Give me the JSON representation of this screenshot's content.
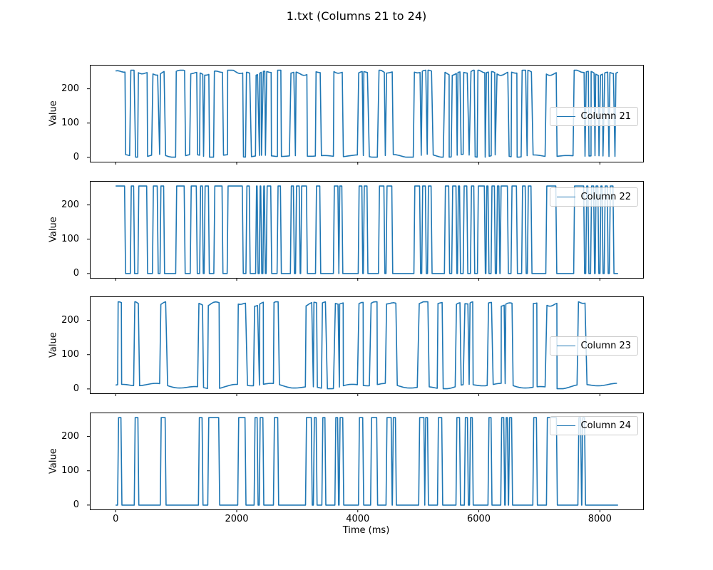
{
  "figure": {
    "title": "1.txt (Columns 21 to 24)",
    "background_color": "#ffffff",
    "line_color": "#1f77b4"
  },
  "axes": {
    "x_label": "Time (ms)",
    "y_label": "Value",
    "x_ticks": [
      0,
      2000,
      4000,
      6000,
      8000
    ],
    "y_ticks": [
      0,
      100,
      200
    ],
    "x_range_ms": [
      -415,
      8715
    ],
    "y_range": [
      -12.75,
      267.75
    ],
    "x_data_start_ms": 0,
    "x_data_end_ms": 8300
  },
  "chart_data": [
    {
      "type": "line",
      "name": "Column 21",
      "color": "#1f77b4",
      "signal": "analog",
      "low_level": 4,
      "high_level": 248,
      "legend_loc": "center right",
      "high_intervals_ms": [
        [
          0,
          155
        ],
        [
          250,
          305
        ],
        [
          375,
          520
        ],
        [
          615,
          695
        ],
        [
          740,
          800
        ],
        [
          1000,
          1140
        ],
        [
          1240,
          1340
        ],
        [
          1395,
          1440
        ],
        [
          1470,
          1540
        ],
        [
          1630,
          1765
        ],
        [
          1850,
          2100
        ],
        [
          2160,
          2215
        ],
        [
          2320,
          2345
        ],
        [
          2380,
          2405
        ],
        [
          2440,
          2465
        ],
        [
          2495,
          2570
        ],
        [
          2675,
          2730
        ],
        [
          2895,
          2945
        ],
        [
          2980,
          3040
        ],
        [
          3065,
          3160
        ],
        [
          3310,
          3380
        ],
        [
          3605,
          3680
        ],
        [
          3695,
          3745
        ],
        [
          4015,
          4075
        ],
        [
          4100,
          4160
        ],
        [
          4350,
          4440
        ],
        [
          4475,
          4570
        ],
        [
          4935,
          5030
        ],
        [
          5065,
          5125
        ],
        [
          5160,
          5220
        ],
        [
          5440,
          5510
        ],
        [
          5560,
          5630
        ],
        [
          5655,
          5690
        ],
        [
          5750,
          5810
        ],
        [
          5870,
          5925
        ],
        [
          5985,
          6100
        ],
        [
          6125,
          6160
        ],
        [
          6210,
          6265
        ],
        [
          6300,
          6340
        ],
        [
          6360,
          6480
        ],
        [
          6540,
          6630
        ],
        [
          6715,
          6775
        ],
        [
          6810,
          6870
        ],
        [
          7115,
          7280
        ],
        [
          7575,
          7740
        ],
        [
          7775,
          7810
        ],
        [
          7855,
          7905
        ],
        [
          7930,
          7975
        ],
        [
          8010,
          8045
        ],
        [
          8080,
          8130
        ],
        [
          8165,
          8225
        ],
        [
          8265,
          8300
        ]
      ]
    },
    {
      "type": "line",
      "name": "Column 22",
      "color": "#1f77b4",
      "signal": "digital",
      "low_level": 0,
      "high_level": 255,
      "legend_loc": "upper right",
      "high_intervals_ms": [
        [
          0,
          155
        ],
        [
          250,
          305
        ],
        [
          375,
          520
        ],
        [
          615,
          695
        ],
        [
          740,
          800
        ],
        [
          1000,
          1140
        ],
        [
          1240,
          1340
        ],
        [
          1395,
          1440
        ],
        [
          1470,
          1540
        ],
        [
          1630,
          1765
        ],
        [
          1850,
          2100
        ],
        [
          2160,
          2215
        ],
        [
          2320,
          2345
        ],
        [
          2380,
          2405
        ],
        [
          2440,
          2465
        ],
        [
          2495,
          2570
        ],
        [
          2675,
          2730
        ],
        [
          2895,
          2945
        ],
        [
          2980,
          3040
        ],
        [
          3065,
          3160
        ],
        [
          3310,
          3380
        ],
        [
          3605,
          3680
        ],
        [
          3695,
          3745
        ],
        [
          4015,
          4075
        ],
        [
          4100,
          4160
        ],
        [
          4350,
          4440
        ],
        [
          4475,
          4570
        ],
        [
          4935,
          5030
        ],
        [
          5065,
          5125
        ],
        [
          5160,
          5220
        ],
        [
          5440,
          5510
        ],
        [
          5560,
          5630
        ],
        [
          5655,
          5690
        ],
        [
          5750,
          5810
        ],
        [
          5870,
          5925
        ],
        [
          5985,
          6100
        ],
        [
          6125,
          6160
        ],
        [
          6210,
          6265
        ],
        [
          6300,
          6340
        ],
        [
          6360,
          6480
        ],
        [
          6540,
          6630
        ],
        [
          6715,
          6775
        ],
        [
          6810,
          6870
        ],
        [
          7115,
          7280
        ],
        [
          7575,
          7740
        ],
        [
          7775,
          7810
        ],
        [
          7855,
          7905
        ],
        [
          7930,
          7975
        ],
        [
          8010,
          8045
        ],
        [
          8080,
          8130
        ],
        [
          8165,
          8225
        ]
      ]
    },
    {
      "type": "line",
      "name": "Column 23",
      "color": "#1f77b4",
      "signal": "analog",
      "low_level": 8,
      "high_level": 250,
      "legend_loc": "center right",
      "high_intervals_ms": [
        [
          40,
          95
        ],
        [
          315,
          375
        ],
        [
          745,
          825
        ],
        [
          1375,
          1435
        ],
        [
          1530,
          1710
        ],
        [
          2025,
          2145
        ],
        [
          2295,
          2345
        ],
        [
          2380,
          2440
        ],
        [
          2615,
          2685
        ],
        [
          3145,
          3240
        ],
        [
          3275,
          3320
        ],
        [
          3415,
          3465
        ],
        [
          3630,
          3675
        ],
        [
          3700,
          3760
        ],
        [
          4020,
          4090
        ],
        [
          4220,
          4320
        ],
        [
          4475,
          4560
        ],
        [
          4580,
          4630
        ],
        [
          5015,
          5100
        ],
        [
          5115,
          5160
        ],
        [
          5325,
          5395
        ],
        [
          5630,
          5690
        ],
        [
          5770,
          5820
        ],
        [
          5855,
          5900
        ],
        [
          6160,
          6210
        ],
        [
          6370,
          6420
        ],
        [
          6445,
          6480
        ],
        [
          6500,
          6550
        ],
        [
          6900,
          6960
        ],
        [
          7125,
          7290
        ],
        [
          7645,
          7690
        ],
        [
          7710,
          7755
        ]
      ]
    },
    {
      "type": "line",
      "name": "Column 24",
      "color": "#1f77b4",
      "signal": "digital",
      "low_level": 0,
      "high_level": 255,
      "legend_loc": "upper right",
      "high_intervals_ms": [
        [
          40,
          95
        ],
        [
          315,
          375
        ],
        [
          745,
          825
        ],
        [
          1375,
          1435
        ],
        [
          1530,
          1710
        ],
        [
          2025,
          2145
        ],
        [
          2295,
          2345
        ],
        [
          2380,
          2440
        ],
        [
          2615,
          2685
        ],
        [
          3145,
          3240
        ],
        [
          3275,
          3320
        ],
        [
          3415,
          3465
        ],
        [
          3630,
          3675
        ],
        [
          3700,
          3760
        ],
        [
          4020,
          4090
        ],
        [
          4220,
          4320
        ],
        [
          4475,
          4560
        ],
        [
          4580,
          4630
        ],
        [
          5015,
          5100
        ],
        [
          5115,
          5160
        ],
        [
          5325,
          5395
        ],
        [
          5630,
          5690
        ],
        [
          5770,
          5820
        ],
        [
          5855,
          5900
        ],
        [
          6160,
          6210
        ],
        [
          6370,
          6420
        ],
        [
          6445,
          6480
        ],
        [
          6500,
          6550
        ],
        [
          6900,
          6960
        ],
        [
          7125,
          7290
        ],
        [
          7645,
          7690
        ],
        [
          7710,
          7755
        ]
      ]
    }
  ]
}
